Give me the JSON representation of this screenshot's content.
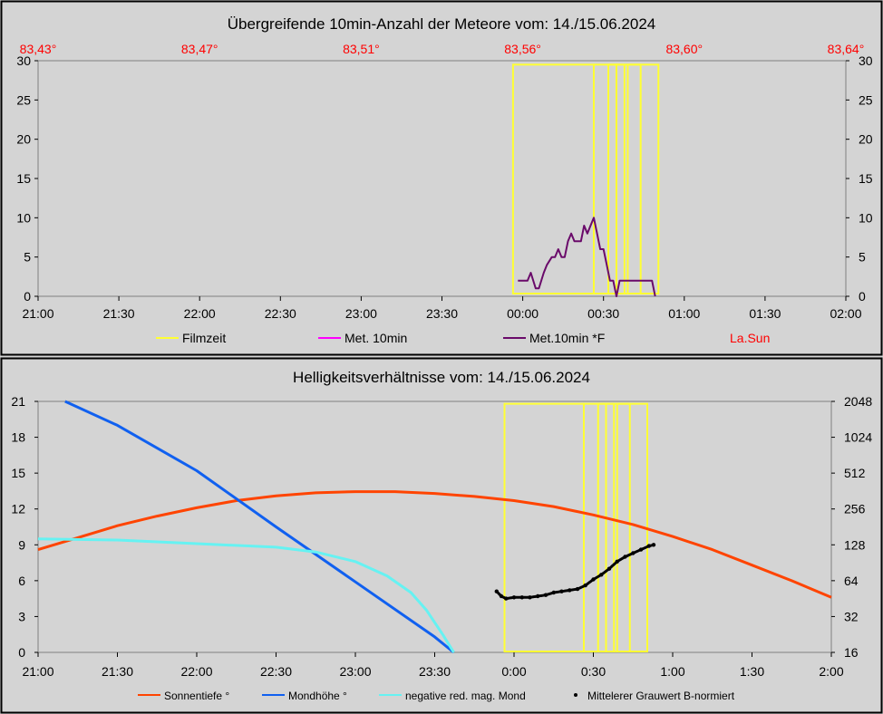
{
  "colors": {
    "background": "#d4d4d4",
    "filmzeit": "#ffff33",
    "met10": "#ff00ff",
    "met10f": "#6a0a6a",
    "lasun": "#ff0000",
    "sonne": "#ff4400",
    "mond": "#1060f0",
    "negmag": "#66f2f2",
    "grau": "#000000"
  },
  "chart_data": [
    {
      "type": "line",
      "title": "Übergreifende 10min-Anzahl der Meteore vom: 14./15.06.2024",
      "x_ticks": [
        "21:00",
        "21:30",
        "22:00",
        "22:30",
        "23:00",
        "23:30",
        "00:00",
        "00:30",
        "01:00",
        "01:30",
        "02:00"
      ],
      "x_range_hours": [
        21,
        26
      ],
      "y_ticks": [
        "0",
        "5",
        "10",
        "15",
        "20",
        "25",
        "30"
      ],
      "ylim": [
        0,
        30
      ],
      "top_axis_ticks": [
        "83,43°",
        "83,47°",
        "83,51°",
        "83,56°",
        "83,60°",
        "83,64°"
      ],
      "grid": false,
      "legend": [
        "Filmzeit",
        "Met. 10min",
        "Met.10min *F",
        "La.Sun"
      ],
      "filmzeit_windows": [
        [
          23.94,
          24.44
        ],
        [
          24.44,
          24.58
        ],
        [
          24.53,
          24.63
        ],
        [
          24.58,
          24.73
        ],
        [
          24.65,
          24.84
        ]
      ],
      "filmzeit_top": 29.5,
      "series": [
        {
          "name": "Met.10min *F",
          "x": [
            23.97,
            24.0,
            24.03,
            24.05,
            24.08,
            24.1,
            24.13,
            24.15,
            24.18,
            24.2,
            24.22,
            24.24,
            24.26,
            24.28,
            24.3,
            24.32,
            24.34,
            24.36,
            24.38,
            24.4,
            24.42,
            24.44,
            24.46,
            24.48,
            24.5,
            24.52,
            24.54,
            24.56,
            24.58,
            24.6,
            24.62,
            24.64,
            24.66,
            24.68,
            24.7,
            24.72,
            24.74,
            24.76,
            24.78,
            24.8,
            24.82
          ],
          "y": [
            2,
            2,
            2,
            3,
            1,
            1,
            3,
            4,
            5,
            5,
            6,
            5,
            5,
            7,
            8,
            7,
            7,
            7,
            9,
            8,
            9,
            10,
            8,
            6,
            6,
            4,
            2,
            2,
            0,
            2,
            2,
            2,
            2,
            2,
            2,
            2,
            2,
            2,
            2,
            2,
            0
          ]
        }
      ]
    },
    {
      "type": "line",
      "title": "Helligkeitsverhältnisse vom: 14./15.06.2024",
      "x_ticks": [
        "21:00",
        "21:30",
        "22:00",
        "22:30",
        "23:00",
        "23:30",
        "0:00",
        "0:30",
        "1:00",
        "1:30",
        "2:00"
      ],
      "x_range_hours": [
        21,
        26
      ],
      "y_ticks": [
        "0",
        "3",
        "6",
        "9",
        "12",
        "15",
        "18",
        "21"
      ],
      "ylim": [
        0,
        21
      ],
      "y2_ticks": [
        "16",
        "32",
        "64",
        "128",
        "256",
        "512",
        "1024",
        "2048"
      ],
      "y2_scale": "log2",
      "y2lim": [
        16,
        2048
      ],
      "grid": false,
      "legend": [
        "Sonnentiefe °",
        "Mondhöhe °",
        "negative red. mag. Mond",
        "Mittelerer Grauwert B-normiert"
      ],
      "filmzeit_windows": [
        [
          23.94,
          24.44
        ],
        [
          24.44,
          24.58
        ],
        [
          24.53,
          24.63
        ],
        [
          24.58,
          24.73
        ],
        [
          24.65,
          24.84
        ]
      ],
      "filmzeit_top": 20.8,
      "series": [
        {
          "name": "Sonnentiefe °",
          "x": [
            21.0,
            21.25,
            21.5,
            21.75,
            22.0,
            22.25,
            22.5,
            22.75,
            23.0,
            23.25,
            23.5,
            23.75,
            24.0,
            24.25,
            24.5,
            24.75,
            25.0,
            25.25,
            25.5,
            25.75,
            26.0
          ],
          "y": [
            8.6,
            9.6,
            10.6,
            11.4,
            12.1,
            12.7,
            13.1,
            13.35,
            13.45,
            13.45,
            13.3,
            13.05,
            12.7,
            12.2,
            11.5,
            10.7,
            9.7,
            8.6,
            7.3,
            6.0,
            4.6
          ]
        },
        {
          "name": "Mondhöhe °",
          "x": [
            21.17,
            21.5,
            22.0,
            22.5,
            23.0,
            23.5,
            23.62
          ],
          "y": [
            21.0,
            19.0,
            15.2,
            10.5,
            5.9,
            1.3,
            0.0
          ]
        },
        {
          "name": "negative red. mag. Mond",
          "x": [
            21.0,
            21.5,
            22.0,
            22.5,
            22.75,
            23.0,
            23.2,
            23.35,
            23.45,
            23.55,
            23.62
          ],
          "y": [
            9.5,
            9.4,
            9.1,
            8.8,
            8.4,
            7.6,
            6.4,
            5.0,
            3.5,
            1.5,
            0.0
          ]
        },
        {
          "name": "Mittelerer Grauwert B-normiert",
          "x": [
            23.89,
            23.92,
            23.95,
            24.0,
            24.05,
            24.1,
            24.15,
            24.2,
            24.25,
            24.3,
            24.35,
            24.4,
            24.45,
            24.5,
            24.55,
            24.6,
            24.65,
            24.7,
            24.75,
            24.8,
            24.85,
            24.88
          ],
          "y": [
            5.1,
            4.7,
            4.5,
            4.6,
            4.6,
            4.6,
            4.7,
            4.8,
            5.0,
            5.1,
            5.2,
            5.3,
            5.6,
            6.1,
            6.5,
            7.0,
            7.6,
            8.0,
            8.3,
            8.6,
            8.9,
            9.0
          ]
        }
      ]
    }
  ]
}
